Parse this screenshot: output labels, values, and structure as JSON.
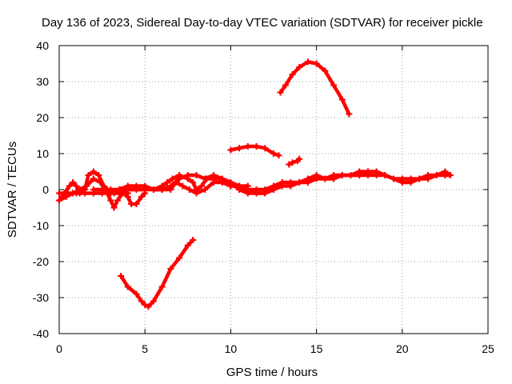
{
  "chart_data": {
    "type": "scatter",
    "title": "Day 136 of 2023, Sidereal Day-to-day VTEC variation (SDTVAR) for receiver pickle",
    "xlabel": "GPS time / hours",
    "ylabel": "SDTVAR / TECUs",
    "xlim": [
      0,
      25
    ],
    "ylim": [
      -40,
      40
    ],
    "xticks": [
      0,
      5,
      10,
      15,
      20,
      25
    ],
    "yticks": [
      -40,
      -30,
      -20,
      -10,
      0,
      10,
      20,
      30,
      40
    ],
    "grid": true,
    "legend": "none",
    "color": "#ff0000",
    "series": [
      {
        "name": "arc-1",
        "points": [
          [
            0,
            -3
          ],
          [
            0.3,
            -1
          ],
          [
            0.6,
            1
          ],
          [
            0.8,
            2
          ],
          [
            1.0,
            1
          ],
          [
            1.2,
            -1
          ],
          [
            1.5,
            0
          ],
          [
            1.7,
            4
          ],
          [
            2.0,
            5
          ],
          [
            2.3,
            4
          ],
          [
            2.6,
            1
          ],
          [
            3.0,
            -3
          ],
          [
            3.2,
            -5
          ],
          [
            3.4,
            -3
          ],
          [
            3.7,
            -1
          ],
          [
            4.0,
            0
          ]
        ]
      },
      {
        "name": "arc-2",
        "points": [
          [
            0,
            -3
          ],
          [
            0.4,
            -2
          ],
          [
            0.8,
            -1
          ],
          [
            1.2,
            0
          ],
          [
            1.6,
            1
          ],
          [
            2.0,
            3
          ],
          [
            2.4,
            2
          ],
          [
            2.8,
            0
          ],
          [
            3.2,
            -1
          ],
          [
            3.6,
            0
          ],
          [
            4.0,
            0
          ],
          [
            4.5,
            0
          ],
          [
            5.0,
            0
          ]
        ]
      },
      {
        "name": "arc-3",
        "points": [
          [
            0,
            -1
          ],
          [
            0.5,
            -1
          ],
          [
            1.0,
            -1
          ],
          [
            1.5,
            -1
          ],
          [
            2.0,
            -1
          ],
          [
            2.5,
            -1
          ],
          [
            3.0,
            -1
          ],
          [
            3.5,
            -1
          ],
          [
            4.0,
            -1
          ]
        ]
      },
      {
        "name": "arc-4",
        "points": [
          [
            3.5,
            0
          ],
          [
            4.0,
            -2
          ],
          [
            4.2,
            -4
          ],
          [
            4.5,
            -4
          ],
          [
            4.8,
            -2
          ],
          [
            5.0,
            -1
          ]
        ]
      },
      {
        "name": "arc-5",
        "points": [
          [
            2.0,
            0
          ],
          [
            2.5,
            0
          ],
          [
            3.0,
            0
          ],
          [
            3.5,
            0
          ],
          [
            4.0,
            1
          ],
          [
            4.5,
            1
          ],
          [
            5.0,
            1
          ],
          [
            5.5,
            0
          ],
          [
            6.0,
            0
          ]
        ]
      },
      {
        "name": "arc-6",
        "points": [
          [
            3.5,
            0
          ],
          [
            4.0,
            0
          ],
          [
            5.0,
            0
          ],
          [
            6.0,
            0
          ],
          [
            6.5,
            1
          ],
          [
            7.0,
            3
          ],
          [
            7.5,
            4
          ],
          [
            8.0,
            4
          ],
          [
            8.5,
            3
          ],
          [
            9.0,
            4
          ],
          [
            9.5,
            3
          ],
          [
            10.0,
            2
          ],
          [
            10.5,
            0
          ],
          [
            11.0,
            -1
          ],
          [
            11.5,
            -1
          ],
          [
            12.0,
            -1
          ],
          [
            12.5,
            0
          ]
        ]
      },
      {
        "name": "arc-7",
        "points": [
          [
            5.5,
            0
          ],
          [
            6.0,
            1
          ],
          [
            6.3,
            2
          ],
          [
            6.6,
            3
          ],
          [
            7.0,
            4
          ],
          [
            7.5,
            3
          ],
          [
            7.8,
            2
          ],
          [
            8.0,
            0
          ],
          [
            8.3,
            1
          ],
          [
            8.6,
            3
          ],
          [
            9.0,
            3
          ],
          [
            9.5,
            3
          ],
          [
            10.0,
            2
          ],
          [
            10.5,
            1
          ],
          [
            11.0,
            0
          ],
          [
            11.5,
            -1
          ],
          [
            12.0,
            -1
          ],
          [
            12.5,
            0
          ],
          [
            13.0,
            1
          ],
          [
            13.5,
            1
          ],
          [
            14.0,
            2
          ],
          [
            14.5,
            3
          ],
          [
            15.0,
            4
          ],
          [
            15.5,
            3
          ],
          [
            16.0,
            3
          ],
          [
            16.5,
            4
          ],
          [
            17.0,
            4
          ],
          [
            17.5,
            5
          ],
          [
            18.0,
            5
          ]
        ]
      },
      {
        "name": "arc-8",
        "points": [
          [
            6.0,
            0
          ],
          [
            6.5,
            0
          ],
          [
            6.8,
            2
          ],
          [
            7.2,
            1
          ],
          [
            7.6,
            0
          ],
          [
            8.0,
            -1
          ],
          [
            8.5,
            0
          ],
          [
            9.0,
            2
          ],
          [
            9.5,
            2
          ],
          [
            10.0,
            1
          ],
          [
            10.5,
            1
          ],
          [
            11.0,
            1
          ]
        ]
      },
      {
        "name": "arc-9",
        "points": [
          [
            10.0,
            1
          ],
          [
            10.5,
            1
          ],
          [
            11.0,
            0
          ],
          [
            11.5,
            0
          ],
          [
            12.0,
            0
          ],
          [
            12.5,
            1
          ],
          [
            13.0,
            2
          ],
          [
            13.5,
            2
          ],
          [
            14.0,
            2
          ],
          [
            14.5,
            2
          ],
          [
            15.0,
            3
          ],
          [
            15.5,
            3
          ],
          [
            16.0,
            4
          ],
          [
            16.5,
            4
          ],
          [
            17.0,
            4
          ],
          [
            17.5,
            4
          ],
          [
            18.0,
            5
          ],
          [
            18.5,
            5
          ],
          [
            19.0,
            4
          ],
          [
            19.5,
            3
          ],
          [
            20.0,
            3
          ],
          [
            20.5,
            3
          ],
          [
            21.0,
            3
          ],
          [
            21.5,
            4
          ],
          [
            22.0,
            4
          ],
          [
            22.5,
            5
          ],
          [
            22.8,
            4
          ]
        ]
      },
      {
        "name": "arc-10",
        "points": [
          [
            17.0,
            4
          ],
          [
            17.5,
            4
          ],
          [
            18.0,
            4
          ],
          [
            18.5,
            4
          ],
          [
            19.0,
            4
          ],
          [
            19.5,
            3
          ],
          [
            20.0,
            2
          ],
          [
            20.5,
            2
          ],
          [
            21.0,
            3
          ],
          [
            21.5,
            3
          ],
          [
            22.0,
            4
          ],
          [
            22.5,
            4
          ],
          [
            22.8,
            4
          ]
        ]
      },
      {
        "name": "arc-11",
        "points": [
          [
            3.6,
            -24
          ],
          [
            4.0,
            -27
          ],
          [
            4.5,
            -29
          ],
          [
            4.8,
            -31
          ],
          [
            5.0,
            -32
          ],
          [
            5.2,
            -32.5
          ],
          [
            5.5,
            -31
          ],
          [
            6.0,
            -27
          ],
          [
            6.5,
            -22
          ],
          [
            7.0,
            -19
          ],
          [
            7.5,
            -15.5
          ],
          [
            7.8,
            -14
          ]
        ]
      },
      {
        "name": "arc-12",
        "points": [
          [
            10.0,
            11
          ],
          [
            10.5,
            11.5
          ],
          [
            11.0,
            12
          ],
          [
            11.5,
            12
          ],
          [
            12.0,
            11.5
          ],
          [
            12.5,
            10
          ],
          [
            12.8,
            9.5
          ]
        ]
      },
      {
        "name": "arc-13",
        "points": [
          [
            13.4,
            7
          ],
          [
            13.6,
            7.5
          ],
          [
            13.9,
            8
          ],
          [
            14.0,
            8.5
          ]
        ]
      },
      {
        "name": "arc-14",
        "points": [
          [
            12.9,
            27
          ],
          [
            13.2,
            29
          ],
          [
            13.6,
            32
          ],
          [
            14.0,
            34
          ],
          [
            14.5,
            35.5
          ],
          [
            15.0,
            35
          ],
          [
            15.5,
            33
          ],
          [
            16.0,
            29
          ],
          [
            16.5,
            25
          ],
          [
            16.9,
            21
          ]
        ]
      }
    ]
  }
}
